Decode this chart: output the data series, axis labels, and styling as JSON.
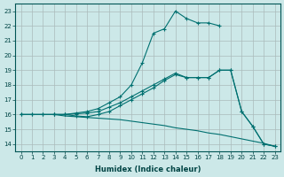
{
  "xlabel": "Humidex (Indice chaleur)",
  "background_color": "#cce8e8",
  "grid_color": "#aacccc",
  "line_color": "#007070",
  "xlim": [
    -0.5,
    23.5
  ],
  "ylim": [
    13.5,
    23.5
  ],
  "xticks": [
    0,
    1,
    2,
    3,
    4,
    5,
    6,
    7,
    8,
    9,
    10,
    11,
    12,
    13,
    14,
    15,
    16,
    17,
    18,
    19,
    20,
    21,
    22,
    23
  ],
  "yticks": [
    14,
    15,
    16,
    17,
    18,
    19,
    20,
    21,
    22,
    23
  ],
  "line1_x": [
    0,
    1,
    2,
    3,
    4,
    5,
    6,
    7,
    8,
    9,
    10,
    11,
    12,
    13,
    14,
    15,
    16,
    17,
    18
  ],
  "line1_y": [
    16,
    16,
    16,
    16,
    16,
    16.1,
    16.2,
    16.4,
    16.8,
    17.2,
    18.0,
    19.5,
    21.5,
    21.8,
    23,
    22.5,
    22.2,
    22.2,
    22.0
  ],
  "line2_x": [
    0,
    1,
    2,
    3,
    4,
    5,
    6,
    7,
    8,
    9,
    10,
    11,
    12,
    13,
    14,
    15,
    16,
    17,
    18,
    19,
    20,
    21,
    22,
    23
  ],
  "line2_y": [
    16,
    16,
    16,
    16,
    15.9,
    15.85,
    15.8,
    15.75,
    15.7,
    15.65,
    15.55,
    15.45,
    15.35,
    15.25,
    15.1,
    15.0,
    14.9,
    14.75,
    14.65,
    14.5,
    14.35,
    14.2,
    14.05,
    13.85
  ],
  "line3_x": [
    0,
    1,
    2,
    3,
    4,
    5,
    6,
    7,
    8,
    9,
    10,
    11,
    12,
    13,
    14,
    15,
    16,
    17,
    18,
    19,
    20,
    21,
    22,
    23
  ],
  "line3_y": [
    16,
    16,
    16,
    16,
    16,
    16.05,
    16.1,
    16.2,
    16.5,
    16.8,
    17.2,
    17.6,
    18.0,
    18.4,
    18.8,
    18.5,
    18.5,
    18.5,
    19.0,
    19.0,
    16.2,
    15.2,
    14.0,
    13.85
  ],
  "line4_x": [
    3,
    4,
    5,
    6,
    7,
    8,
    9,
    10,
    11,
    12,
    13,
    14,
    15,
    16,
    17,
    18,
    19,
    20,
    21,
    22,
    23
  ],
  "line4_y": [
    16,
    16,
    15.9,
    15.85,
    16.0,
    16.2,
    16.6,
    17.0,
    17.4,
    17.8,
    18.3,
    18.7,
    18.5,
    18.5,
    18.5,
    19.0,
    19.0,
    16.2,
    15.2,
    14.0,
    13.85
  ]
}
